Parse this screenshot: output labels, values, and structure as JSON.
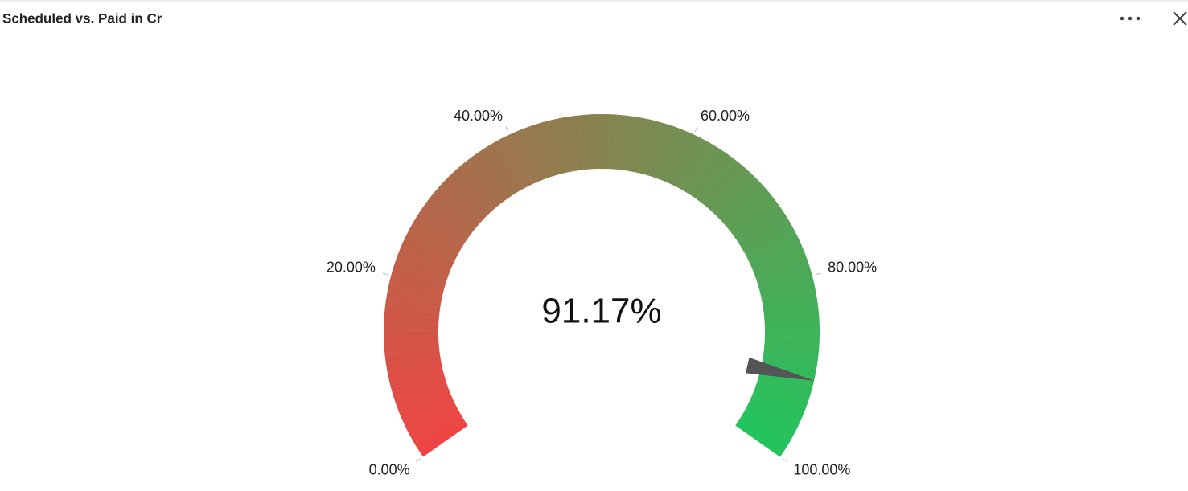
{
  "chart_data": {
    "type": "gauge",
    "title": "Scheduled vs. Paid in Cr",
    "value": 91.17,
    "value_label": "91.17%",
    "ylim": [
      0,
      100
    ],
    "yticks": [
      {
        "value": 0,
        "label": "0.00%"
      },
      {
        "value": 20,
        "label": "20.00%"
      },
      {
        "value": 40,
        "label": "40.00%"
      },
      {
        "value": 60,
        "label": "60.00%"
      },
      {
        "value": 80,
        "label": "80.00%"
      },
      {
        "value": 100,
        "label": "100.00%"
      }
    ],
    "colors": [
      "#ef4444",
      "#86834f",
      "#22c55e"
    ],
    "needle_color": "#555555"
  }
}
